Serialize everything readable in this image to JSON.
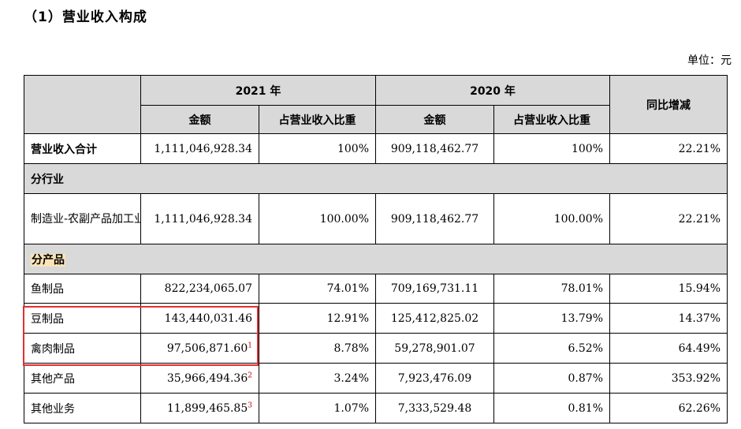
{
  "heading": "（1）营业收入构成",
  "unit": "单位：元",
  "header": {
    "year_2021": "2021 年",
    "year_2020": "2020 年",
    "yoy": "同比增减",
    "amount": "金额",
    "share": "占营业收入比重"
  },
  "total": {
    "label": "营业收入合计",
    "amount_2021": "1,111,046,928.34",
    "share_2021": "100%",
    "amount_2020": "909,118,462.77",
    "share_2020": "100%",
    "yoy": "22.21%"
  },
  "by_industry": {
    "section": "分行业",
    "rows": [
      {
        "label": "制造业-农副产品加工业",
        "amount_2021": "1,111,046,928.34",
        "share_2021": "100.00%",
        "amount_2020": "909,118,462.77",
        "share_2020": "100.00%",
        "yoy": "22.21%"
      }
    ]
  },
  "by_product": {
    "section": "分产品",
    "rows": [
      {
        "label": "鱼制品",
        "amount_2021": "822,234,065.07",
        "note": "",
        "share_2021": "74.01%",
        "amount_2020": "709,169,731.11",
        "share_2020": "78.01%",
        "yoy": "15.94%"
      },
      {
        "label": "豆制品",
        "amount_2021": "143,440,031.46",
        "note": "",
        "share_2021": "12.91%",
        "amount_2020": "125,412,825.02",
        "share_2020": "13.79%",
        "yoy": "14.37%"
      },
      {
        "label": "禽肉制品",
        "amount_2021": "97,506,871.60",
        "note": "1",
        "share_2021": "8.78%",
        "amount_2020": "59,278,901.07",
        "share_2020": "6.52%",
        "yoy": "64.49%"
      },
      {
        "label": "其他产品",
        "amount_2021": "35,966,494.36",
        "note": "2",
        "share_2021": "3.24%",
        "amount_2020": "7,923,476.09",
        "share_2020": "0.87%",
        "yoy": "353.92%"
      },
      {
        "label": "其他业务",
        "amount_2021": "11,899,465.85",
        "note": "3",
        "share_2021": "1.07%",
        "amount_2020": "7,333,529.48",
        "share_2020": "0.81%",
        "yoy": "62.26%"
      }
    ]
  },
  "colors": {
    "header_bg": "#d9d9d9",
    "highlight": "#e0302e",
    "note": "#c00000"
  }
}
